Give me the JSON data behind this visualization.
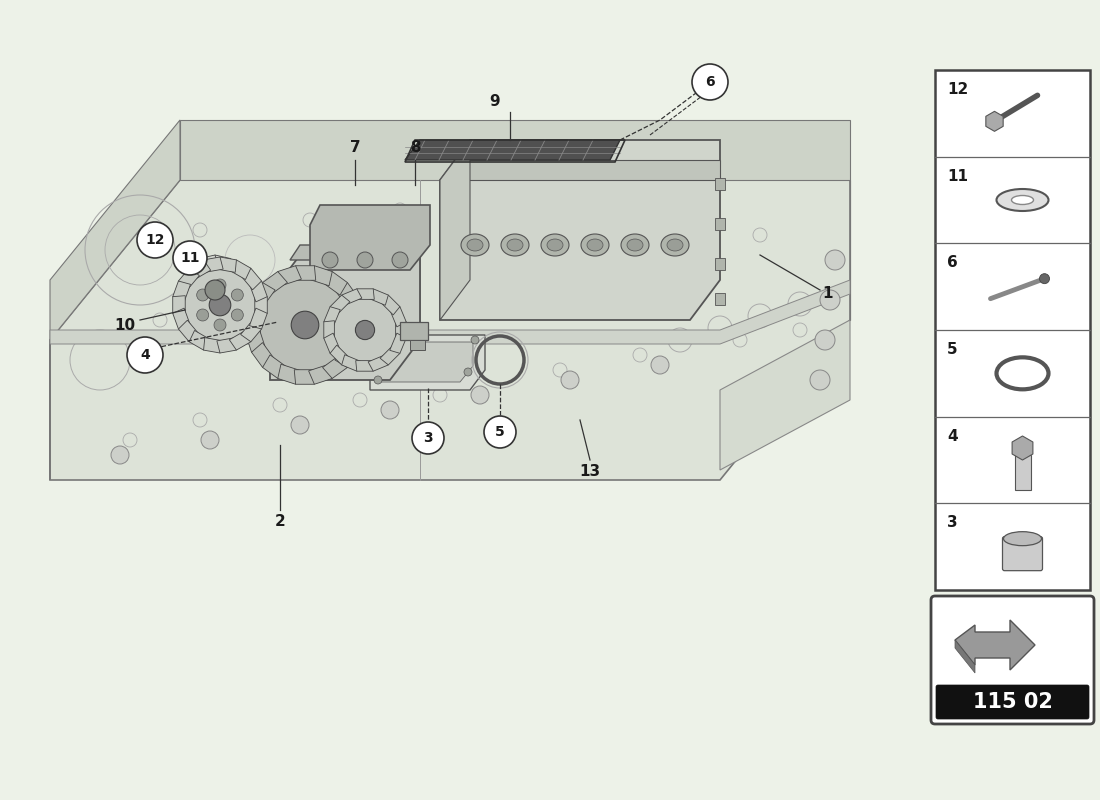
{
  "bg_color": "#edf2e8",
  "main_bg": "#edf2e8",
  "engine_face_color": "#dde3d8",
  "engine_edge_color": "#888888",
  "engine_light_color": "#e8ede4",
  "sidebar_bg": "#ffffff",
  "sidebar_border": "#555555",
  "text_color": "#1a1a1a",
  "leader_color": "#333333",
  "callout_color": "#333333",
  "title_code": "115 02",
  "label_fontsize": 11,
  "callout_fontsize": 10,
  "sidebar_items": [
    12,
    11,
    6,
    5,
    4,
    3
  ],
  "badge_bg": "#000000",
  "badge_text_color": "#ffffff",
  "arrow_fill": "#888888"
}
